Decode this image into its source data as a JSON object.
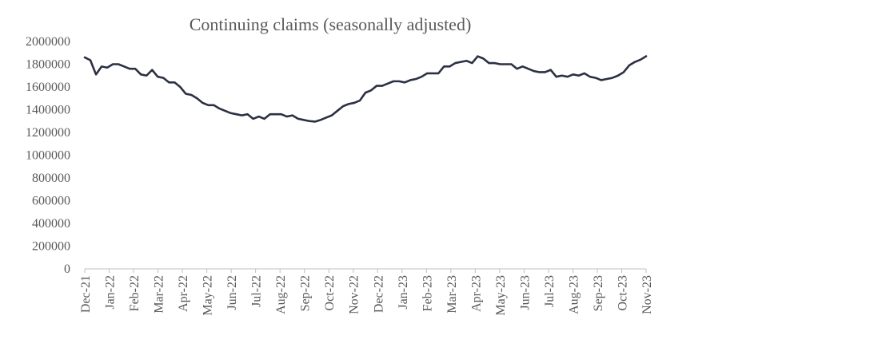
{
  "chart_data": {
    "type": "line",
    "title": "Continuing claims (seasonally adjusted)",
    "xlabel": "",
    "ylabel": "",
    "ylim": [
      0,
      2000000
    ],
    "y_ticks": [
      0,
      200000,
      400000,
      600000,
      800000,
      1000000,
      1200000,
      1400000,
      1600000,
      1800000,
      2000000
    ],
    "x_ticks": [
      "Dec-21",
      "Jan-22",
      "Feb-22",
      "Mar-22",
      "Apr-22",
      "May-22",
      "Jun-22",
      "Jul-22",
      "Aug-22",
      "Sep-22",
      "Oct-22",
      "Nov-22",
      "Dec-22",
      "Jan-23",
      "Feb-23",
      "Mar-23",
      "Apr-23",
      "May-23",
      "Jun-23",
      "Jul-23",
      "Aug-23",
      "Sep-23",
      "Oct-23",
      "Nov-23"
    ],
    "grid": false,
    "legend": "none",
    "line_color": "#2b3043",
    "series": [
      {
        "values": [
          1860000,
          1835000,
          1710000,
          1780000,
          1770000,
          1800000,
          1800000,
          1780000,
          1760000,
          1760000,
          1710000,
          1700000,
          1750000,
          1690000,
          1680000,
          1640000,
          1640000,
          1600000,
          1540000,
          1530000,
          1500000,
          1460000,
          1440000,
          1440000,
          1410000,
          1390000,
          1370000,
          1360000,
          1350000,
          1360000,
          1320000,
          1340000,
          1320000,
          1360000,
          1360000,
          1360000,
          1340000,
          1350000,
          1320000,
          1310000,
          1300000,
          1295000,
          1310000,
          1330000,
          1350000,
          1390000,
          1430000,
          1450000,
          1460000,
          1480000,
          1550000,
          1570000,
          1610000,
          1610000,
          1630000,
          1650000,
          1650000,
          1640000,
          1660000,
          1670000,
          1690000,
          1720000,
          1720000,
          1720000,
          1780000,
          1780000,
          1810000,
          1820000,
          1830000,
          1810000,
          1870000,
          1850000,
          1810000,
          1810000,
          1800000,
          1800000,
          1800000,
          1760000,
          1780000,
          1760000,
          1740000,
          1730000,
          1730000,
          1750000,
          1690000,
          1700000,
          1690000,
          1710000,
          1700000,
          1720000,
          1690000,
          1680000,
          1660000,
          1670000,
          1680000,
          1700000,
          1730000,
          1790000,
          1820000,
          1840000,
          1870000
        ]
      }
    ]
  }
}
